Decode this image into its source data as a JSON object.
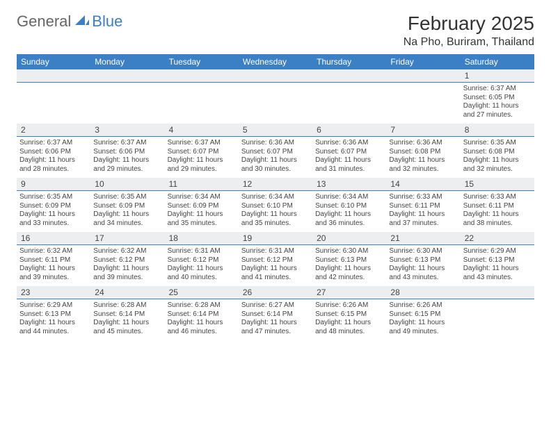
{
  "logo": {
    "text1": "General",
    "text2": "Blue"
  },
  "title": "February 2025",
  "location": "Na Pho, Buriram, Thailand",
  "colors": {
    "header_bg": "#3b7fc4",
    "header_text": "#ffffff",
    "daynum_bg": "#eceeef",
    "border": "#3b7fc4",
    "body_text": "#444444",
    "logo_gray": "#666666",
    "logo_blue": "#3b7fc4"
  },
  "day_headers": [
    "Sunday",
    "Monday",
    "Tuesday",
    "Wednesday",
    "Thursday",
    "Friday",
    "Saturday"
  ],
  "weeks": [
    [
      {
        "n": "",
        "t": ""
      },
      {
        "n": "",
        "t": ""
      },
      {
        "n": "",
        "t": ""
      },
      {
        "n": "",
        "t": ""
      },
      {
        "n": "",
        "t": ""
      },
      {
        "n": "",
        "t": ""
      },
      {
        "n": "1",
        "t": "Sunrise: 6:37 AM\nSunset: 6:05 PM\nDaylight: 11 hours and 27 minutes."
      }
    ],
    [
      {
        "n": "2",
        "t": "Sunrise: 6:37 AM\nSunset: 6:06 PM\nDaylight: 11 hours and 28 minutes."
      },
      {
        "n": "3",
        "t": "Sunrise: 6:37 AM\nSunset: 6:06 PM\nDaylight: 11 hours and 29 minutes."
      },
      {
        "n": "4",
        "t": "Sunrise: 6:37 AM\nSunset: 6:07 PM\nDaylight: 11 hours and 29 minutes."
      },
      {
        "n": "5",
        "t": "Sunrise: 6:36 AM\nSunset: 6:07 PM\nDaylight: 11 hours and 30 minutes."
      },
      {
        "n": "6",
        "t": "Sunrise: 6:36 AM\nSunset: 6:07 PM\nDaylight: 11 hours and 31 minutes."
      },
      {
        "n": "7",
        "t": "Sunrise: 6:36 AM\nSunset: 6:08 PM\nDaylight: 11 hours and 32 minutes."
      },
      {
        "n": "8",
        "t": "Sunrise: 6:35 AM\nSunset: 6:08 PM\nDaylight: 11 hours and 32 minutes."
      }
    ],
    [
      {
        "n": "9",
        "t": "Sunrise: 6:35 AM\nSunset: 6:09 PM\nDaylight: 11 hours and 33 minutes."
      },
      {
        "n": "10",
        "t": "Sunrise: 6:35 AM\nSunset: 6:09 PM\nDaylight: 11 hours and 34 minutes."
      },
      {
        "n": "11",
        "t": "Sunrise: 6:34 AM\nSunset: 6:09 PM\nDaylight: 11 hours and 35 minutes."
      },
      {
        "n": "12",
        "t": "Sunrise: 6:34 AM\nSunset: 6:10 PM\nDaylight: 11 hours and 35 minutes."
      },
      {
        "n": "13",
        "t": "Sunrise: 6:34 AM\nSunset: 6:10 PM\nDaylight: 11 hours and 36 minutes."
      },
      {
        "n": "14",
        "t": "Sunrise: 6:33 AM\nSunset: 6:11 PM\nDaylight: 11 hours and 37 minutes."
      },
      {
        "n": "15",
        "t": "Sunrise: 6:33 AM\nSunset: 6:11 PM\nDaylight: 11 hours and 38 minutes."
      }
    ],
    [
      {
        "n": "16",
        "t": "Sunrise: 6:32 AM\nSunset: 6:11 PM\nDaylight: 11 hours and 39 minutes."
      },
      {
        "n": "17",
        "t": "Sunrise: 6:32 AM\nSunset: 6:12 PM\nDaylight: 11 hours and 39 minutes."
      },
      {
        "n": "18",
        "t": "Sunrise: 6:31 AM\nSunset: 6:12 PM\nDaylight: 11 hours and 40 minutes."
      },
      {
        "n": "19",
        "t": "Sunrise: 6:31 AM\nSunset: 6:12 PM\nDaylight: 11 hours and 41 minutes."
      },
      {
        "n": "20",
        "t": "Sunrise: 6:30 AM\nSunset: 6:13 PM\nDaylight: 11 hours and 42 minutes."
      },
      {
        "n": "21",
        "t": "Sunrise: 6:30 AM\nSunset: 6:13 PM\nDaylight: 11 hours and 43 minutes."
      },
      {
        "n": "22",
        "t": "Sunrise: 6:29 AM\nSunset: 6:13 PM\nDaylight: 11 hours and 43 minutes."
      }
    ],
    [
      {
        "n": "23",
        "t": "Sunrise: 6:29 AM\nSunset: 6:13 PM\nDaylight: 11 hours and 44 minutes."
      },
      {
        "n": "24",
        "t": "Sunrise: 6:28 AM\nSunset: 6:14 PM\nDaylight: 11 hours and 45 minutes."
      },
      {
        "n": "25",
        "t": "Sunrise: 6:28 AM\nSunset: 6:14 PM\nDaylight: 11 hours and 46 minutes."
      },
      {
        "n": "26",
        "t": "Sunrise: 6:27 AM\nSunset: 6:14 PM\nDaylight: 11 hours and 47 minutes."
      },
      {
        "n": "27",
        "t": "Sunrise: 6:26 AM\nSunset: 6:15 PM\nDaylight: 11 hours and 48 minutes."
      },
      {
        "n": "28",
        "t": "Sunrise: 6:26 AM\nSunset: 6:15 PM\nDaylight: 11 hours and 49 minutes."
      },
      {
        "n": "",
        "t": ""
      }
    ]
  ]
}
